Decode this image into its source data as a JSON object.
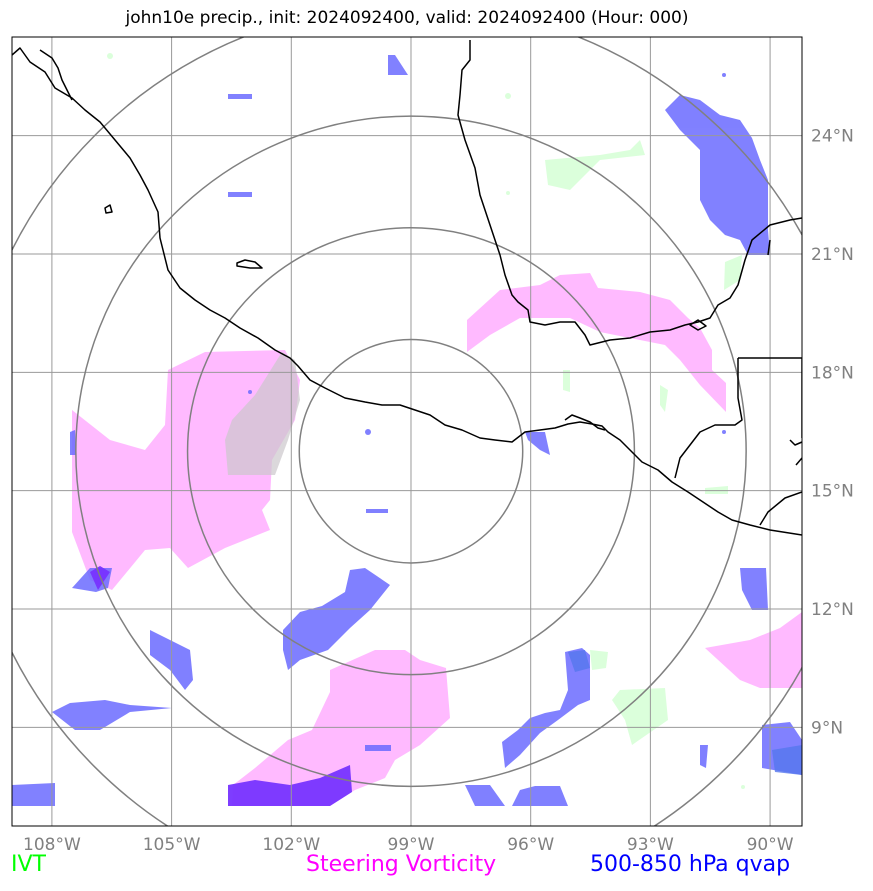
{
  "title": "john10e precip., init: 2024092400, valid: 2024092400 (Hour: 000)",
  "map": {
    "lon_range": [
      -109,
      -89.2
    ],
    "lat_range": [
      6.5,
      26.5
    ],
    "lon_ticks": [
      {
        "value": -108,
        "label": "108°W"
      },
      {
        "value": -105,
        "label": "105°W"
      },
      {
        "value": -102,
        "label": "102°W"
      },
      {
        "value": -99,
        "label": "99°W"
      },
      {
        "value": -96,
        "label": "96°W"
      },
      {
        "value": -93,
        "label": "93°W"
      },
      {
        "value": -90,
        "label": "90°W"
      }
    ],
    "lat_ticks": [
      {
        "value": 9,
        "label": "9°N"
      },
      {
        "value": 12,
        "label": "12°N"
      },
      {
        "value": 15,
        "label": "15°N"
      },
      {
        "value": 18,
        "label": "18°N"
      },
      {
        "value": 21,
        "label": "21°N"
      },
      {
        "value": 24,
        "label": "24°N"
      }
    ],
    "grid": true,
    "range_rings_center": {
      "lon": -99,
      "lat": 16
    },
    "range_ring_radii_deg": [
      2.8,
      5.6,
      8.4,
      11.2
    ]
  },
  "legend": {
    "ivt": {
      "label": "IVT",
      "color": "#00ff00"
    },
    "vorticity": {
      "label": "Steering Vorticity",
      "color": "#ff00ff"
    },
    "qvap": {
      "label": "500-850 hPa qvap",
      "color": "#0000ff"
    }
  },
  "colors": {
    "ivt_fill": "#ccffcc",
    "vorticity_fill": "#ffaaff",
    "qvap_fill": "#6666ff",
    "grid": "#999999",
    "rings": "#808080",
    "coast": "#000000"
  }
}
